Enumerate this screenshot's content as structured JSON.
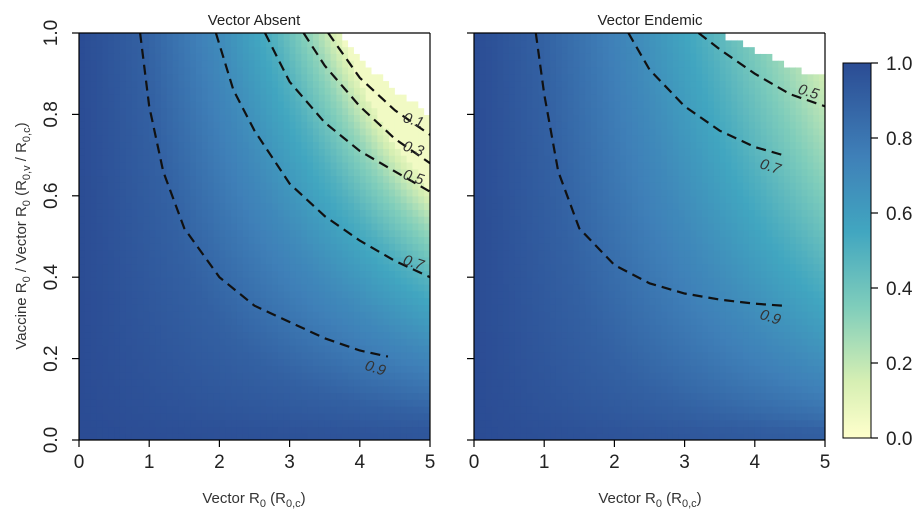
{
  "chart_data": {
    "type": "heatmap",
    "y_axis_label": {
      "main": "Vaccine R",
      "sub1": "0",
      "mid": " / Vector R",
      "sub2": "0",
      "paren_open": " (R",
      "sub3": "0,v",
      "slash": " / R",
      "sub4": "0,c",
      "paren_close": ")"
    },
    "x_axis_label": {
      "main": "Vector R",
      "sub1": "0",
      "paren_open": " (R",
      "sub2": "0,c",
      "paren_close": ")"
    },
    "xlim": [
      0,
      5
    ],
    "ylim": [
      0,
      1
    ],
    "x_ticks": [
      "0",
      "1",
      "2",
      "3",
      "4",
      "5"
    ],
    "y_ticks": [
      "0.0",
      "0.2",
      "0.4",
      "0.6",
      "0.8",
      "1.0"
    ],
    "colorbar": {
      "ticks": [
        "0.0",
        "0.2",
        "0.4",
        "0.6",
        "0.8",
        "1.0"
      ],
      "range": [
        0,
        1
      ],
      "low_color": "#ffffcc",
      "mid_color": "#41b6c4",
      "high_color": "#253494"
    },
    "panels": [
      {
        "title": "Vector Absent",
        "contours": [
          {
            "level": 0.9,
            "label": "0.9",
            "points": [
              [
                0.87,
                1.0
              ],
              [
                1.0,
                0.82
              ],
              [
                1.2,
                0.66
              ],
              [
                1.5,
                0.52
              ],
              [
                2.0,
                0.4
              ],
              [
                2.5,
                0.33
              ],
              [
                3.0,
                0.29
              ],
              [
                3.5,
                0.25
              ],
              [
                4.0,
                0.22
              ],
              [
                4.4,
                0.205
              ]
            ]
          },
          {
            "level": 0.7,
            "label": "0.7",
            "points": [
              [
                1.95,
                1.0
              ],
              [
                2.2,
                0.86
              ],
              [
                2.5,
                0.76
              ],
              [
                3.0,
                0.63
              ],
              [
                3.5,
                0.55
              ],
              [
                4.0,
                0.49
              ],
              [
                4.5,
                0.44
              ],
              [
                5.0,
                0.4
              ]
            ]
          },
          {
            "level": 0.5,
            "label": "0.5",
            "points": [
              [
                2.65,
                1.0
              ],
              [
                3.0,
                0.88
              ],
              [
                3.5,
                0.78
              ],
              [
                4.0,
                0.71
              ],
              [
                4.5,
                0.66
              ],
              [
                5.0,
                0.61
              ]
            ]
          },
          {
            "level": 0.3,
            "label": "0.3",
            "points": [
              [
                3.2,
                1.0
              ],
              [
                3.5,
                0.92
              ],
              [
                4.0,
                0.82
              ],
              [
                4.5,
                0.74
              ],
              [
                5.0,
                0.68
              ]
            ]
          },
          {
            "level": 0.1,
            "label": "0.1",
            "points": [
              [
                3.55,
                1.0
              ],
              [
                4.0,
                0.89
              ],
              [
                4.5,
                0.81
              ],
              [
                5.0,
                0.75
              ]
            ]
          }
        ],
        "blank_boundary": [
          [
            3.7,
            1.0
          ],
          [
            4.0,
            0.94
          ],
          [
            4.5,
            0.86
          ],
          [
            5.0,
            0.8
          ]
        ]
      },
      {
        "title": "Vector Endemic",
        "contours": [
          {
            "level": 0.9,
            "label": "0.9",
            "points": [
              [
                0.88,
                1.0
              ],
              [
                1.0,
                0.85
              ],
              [
                1.2,
                0.66
              ],
              [
                1.5,
                0.52
              ],
              [
                2.0,
                0.43
              ],
              [
                2.5,
                0.385
              ],
              [
                3.0,
                0.36
              ],
              [
                3.5,
                0.345
              ],
              [
                4.0,
                0.335
              ],
              [
                4.4,
                0.33
              ]
            ]
          },
          {
            "level": 0.7,
            "label": "0.7",
            "points": [
              [
                2.2,
                1.0
              ],
              [
                2.5,
                0.91
              ],
              [
                3.0,
                0.82
              ],
              [
                3.5,
                0.76
              ],
              [
                4.0,
                0.72
              ],
              [
                4.4,
                0.7
              ]
            ]
          },
          {
            "level": 0.5,
            "label": "0.5",
            "points": [
              [
                3.2,
                1.0
              ],
              [
                3.5,
                0.96
              ],
              [
                4.0,
                0.9
              ],
              [
                4.5,
                0.85
              ],
              [
                5.0,
                0.82
              ]
            ]
          }
        ],
        "blank_boundary": [
          [
            3.45,
            1.0
          ],
          [
            4.0,
            0.96
          ],
          [
            4.5,
            0.92
          ],
          [
            5.0,
            0.89
          ]
        ]
      }
    ]
  }
}
